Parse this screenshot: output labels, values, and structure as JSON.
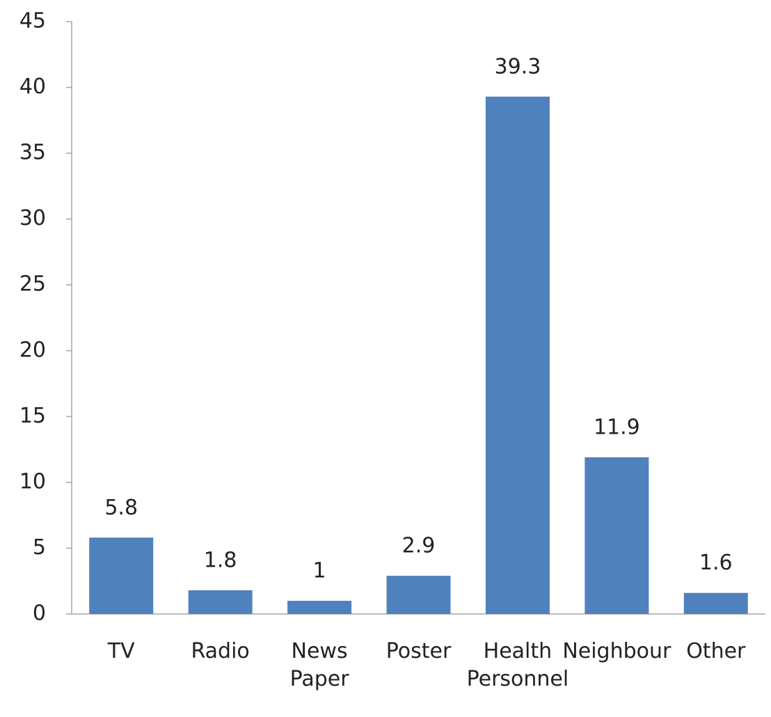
{
  "chart_data": {
    "type": "bar",
    "categories": [
      "TV",
      "Radio",
      "News Paper",
      "Poster",
      "Health Personnel",
      "Neighbour",
      "Other"
    ],
    "values": [
      5.8,
      1.8,
      1,
      2.9,
      39.3,
      11.9,
      1.6
    ],
    "color": "#4f81bd",
    "ylim": [
      0,
      45
    ],
    "yticks": [
      0,
      5,
      10,
      15,
      20,
      25,
      30,
      35,
      40,
      45
    ],
    "grid": false
  }
}
